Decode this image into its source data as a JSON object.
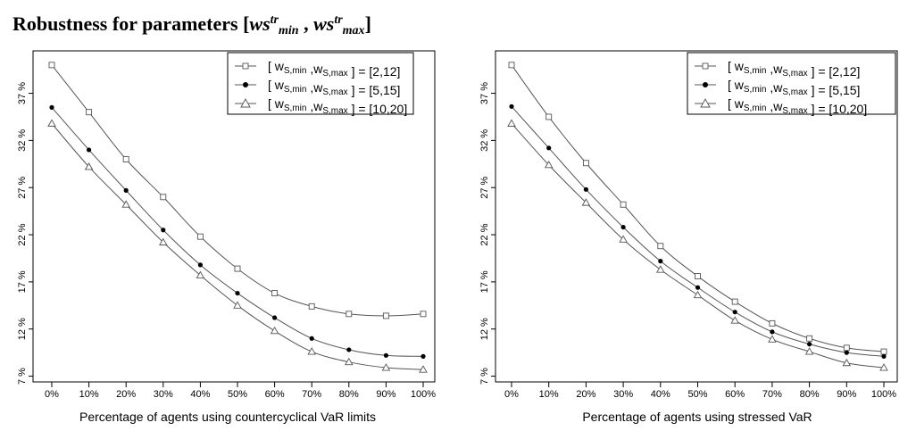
{
  "title": {
    "prefix": "Robustness for parameters [",
    "sym1": "ws",
    "sup1": "tr",
    "sub1": "min",
    "sep": " , ",
    "sym2": "ws",
    "sup2": "tr",
    "sub2": "max",
    "suffix": "]"
  },
  "chart_data": [
    {
      "type": "line",
      "xlabel": "Percentage of agents using countercyclical VaR limits",
      "ylabel": "",
      "x": [
        "0%",
        "10%",
        "20%",
        "30%",
        "40%",
        "50%",
        "60%",
        "70%",
        "80%",
        "90%",
        "100%"
      ],
      "yticks": [
        "7 %",
        "12 %",
        "17 %",
        "22 %",
        "27 %",
        "32 %",
        "37 %"
      ],
      "ylim": [
        6.2,
        41.5
      ],
      "grid": false,
      "legend_position": "top-right",
      "series": [
        {
          "name": "[ w_S,min ,w_S,max ] = [2,12]",
          "marker": "square",
          "values": [
            40.0,
            35.0,
            30.0,
            26.0,
            21.8,
            18.4,
            15.8,
            14.4,
            13.6,
            13.4,
            13.6
          ]
        },
        {
          "name": "[ w_S,min ,w_S,max ] = [5,15]",
          "marker": "filled-circle",
          "values": [
            35.5,
            31.0,
            26.7,
            22.5,
            18.8,
            15.8,
            13.2,
            11.0,
            9.8,
            9.2,
            9.1
          ]
        },
        {
          "name": "[ w_S,min ,w_S,max ] = [10,20]",
          "marker": "triangle",
          "values": [
            33.8,
            29.2,
            25.2,
            21.2,
            17.7,
            14.5,
            11.8,
            9.6,
            8.5,
            7.9,
            7.7
          ]
        }
      ]
    },
    {
      "type": "line",
      "xlabel": "Percentage of agents using stressed VaR",
      "ylabel": "",
      "x": [
        "0%",
        "10%",
        "20%",
        "30%",
        "40%",
        "50%",
        "60%",
        "70%",
        "80%",
        "90%",
        "100%"
      ],
      "yticks": [
        "7 %",
        "12 %",
        "17 %",
        "22 %",
        "27 %",
        "32 %",
        "37 %"
      ],
      "ylim": [
        6.2,
        41.5
      ],
      "grid": false,
      "legend_position": "top-right",
      "series": [
        {
          "name": "[ w_S,min ,w_S,max ] = [2,12]",
          "marker": "square",
          "values": [
            40.0,
            34.5,
            29.6,
            25.2,
            20.8,
            17.6,
            14.9,
            12.6,
            11.0,
            10.0,
            9.6
          ]
        },
        {
          "name": "[ w_S,min ,w_S,max ] = [5,15]",
          "marker": "filled-circle",
          "values": [
            35.6,
            31.2,
            26.8,
            22.8,
            19.2,
            16.4,
            13.8,
            11.7,
            10.4,
            9.5,
            9.1
          ]
        },
        {
          "name": "[ w_S,min ,w_S,max ] = [10,20]",
          "marker": "triangle",
          "values": [
            33.8,
            29.4,
            25.4,
            21.5,
            18.3,
            15.6,
            12.9,
            10.9,
            9.6,
            8.4,
            7.9
          ]
        }
      ]
    }
  ],
  "legend": {
    "prefix": "[ w",
    "sub_min": "S,min",
    "mid": " ,w",
    "sub_max": "S,max",
    "suffix_close": " ] = ",
    "ranges": [
      "[2,12]",
      "[5,15]",
      "[10,20]"
    ]
  }
}
